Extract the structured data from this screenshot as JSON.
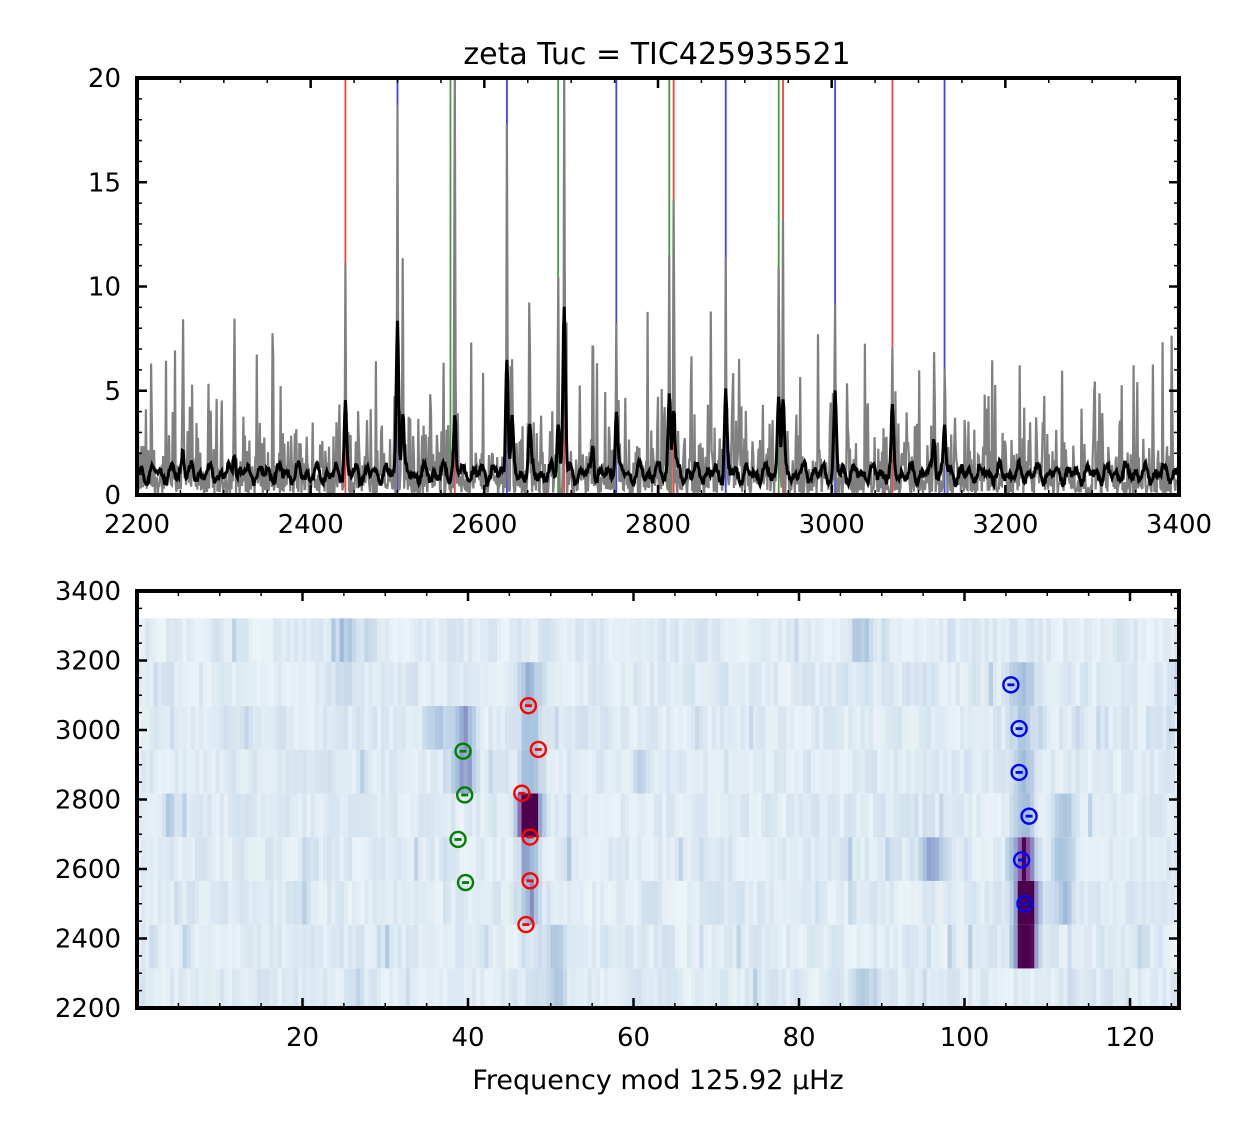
{
  "chart_data": [
    {
      "type": "line",
      "title": "zeta Tuc = TIC425935521",
      "xlabel": "",
      "ylabel": "",
      "xlim": [
        2200,
        3400
      ],
      "ylim": [
        0,
        20
      ],
      "xticks": [
        2200,
        2400,
        2600,
        2800,
        3000,
        3200,
        3400
      ],
      "yticks": [
        0,
        5,
        10,
        15,
        20
      ],
      "grid": false,
      "colors": {
        "raw": "#808080",
        "smooth": "#000000",
        "l0": "#ff0000",
        "l1": "#0000ff",
        "l2": "#008000"
      },
      "mode_lines": {
        "l0": [
          2440,
          2566,
          2692,
          2818,
          2944,
          3070
        ],
        "l1": [
          2500,
          2626,
          2752,
          2878,
          3004,
          3130
        ],
        "l2": [
          2561,
          2685,
          2813,
          2939
        ]
      },
      "peaks": [
        {
          "x": 2253,
          "raw": 7.5,
          "smooth": 1.5
        },
        {
          "x": 2312,
          "raw": 6.8,
          "smooth": 1.6
        },
        {
          "x": 2440,
          "raw": 9.2,
          "smooth": 3.8
        },
        {
          "x": 2500,
          "raw": 19,
          "smooth": 8.2
        },
        {
          "x": 2506,
          "raw": 10.9,
          "smooth": 3.0
        },
        {
          "x": 2566,
          "raw": 20,
          "smooth": 3.0
        },
        {
          "x": 2626,
          "raw": 14.6,
          "smooth": 6.5
        },
        {
          "x": 2632,
          "raw": 6.2,
          "smooth": 2.5
        },
        {
          "x": 2652,
          "raw": 10,
          "smooth": 2.5
        },
        {
          "x": 2685,
          "raw": 10.5,
          "smooth": 3.0
        },
        {
          "x": 2692,
          "raw": 20,
          "smooth": 9.0
        },
        {
          "x": 2725,
          "raw": 6.4,
          "smooth": 1.5
        },
        {
          "x": 2752,
          "raw": 7.3,
          "smooth": 3.6
        },
        {
          "x": 2813,
          "raw": 12,
          "smooth": 4.2
        },
        {
          "x": 2818,
          "raw": 13.3,
          "smooth": 3.5
        },
        {
          "x": 2878,
          "raw": 9.1,
          "smooth": 4.1
        },
        {
          "x": 2939,
          "raw": 10.3,
          "smooth": 4.5
        },
        {
          "x": 2944,
          "raw": 11.3,
          "smooth": 3.5
        },
        {
          "x": 3004,
          "raw": 9.0,
          "smooth": 4.1
        },
        {
          "x": 3070,
          "raw": 6.9,
          "smooth": 3.0
        },
        {
          "x": 3130,
          "raw": 6.1,
          "smooth": 2.5
        },
        {
          "x": 3118,
          "raw": 5.6,
          "smooth": 2.0
        }
      ]
    },
    {
      "type": "heatmap",
      "title": "",
      "xlabel": "Frequency mod 125.92 μHz",
      "ylabel": "",
      "xlim": [
        0,
        125.92
      ],
      "ylim": [
        2200,
        3400
      ],
      "xticks": [
        20,
        40,
        60,
        80,
        100,
        120
      ],
      "yticks": [
        2200,
        2400,
        2600,
        2800,
        3000,
        3200,
        3400
      ],
      "grid": false,
      "colormap": "BuPu",
      "row_count": 9,
      "row_start": 2188,
      "row_height": 125.92,
      "ridges": [
        {
          "x": 39.5,
          "rows": [
            5,
            6
          ],
          "strength": 0.45
        },
        {
          "x": 47.5,
          "rows": [
            2,
            3,
            4,
            5,
            6,
            7
          ],
          "strength": 0.35
        },
        {
          "x": 47.3,
          "rows": [
            4
          ],
          "strength": 1.0
        },
        {
          "x": 107.2,
          "rows": [
            1,
            2,
            3,
            4,
            5,
            6,
            7
          ],
          "strength": 0.3
        },
        {
          "x": 107.5,
          "rows": [
            1,
            2
          ],
          "strength": 0.95
        },
        {
          "x": 107.2,
          "rows": [
            3
          ],
          "strength": 0.5
        },
        {
          "x": 112,
          "rows": [
            2,
            3,
            4
          ],
          "strength": 0.3
        },
        {
          "x": 96,
          "rows": [
            3
          ],
          "strength": 0.4
        },
        {
          "x": 50.5,
          "rows": [
            0,
            1
          ],
          "strength": 0.25
        },
        {
          "x": 88,
          "rows": [
            0,
            8
          ],
          "strength": 0.2
        },
        {
          "x": 36,
          "rows": [
            6
          ],
          "strength": 0.2
        },
        {
          "x": 25,
          "rows": [
            7,
            8
          ],
          "strength": 0.15
        },
        {
          "x": 61,
          "rows": [
            5
          ],
          "strength": 0.15
        }
      ],
      "modes": {
        "l0": {
          "color": "#ff0000",
          "points": [
            [
              47,
              2440
            ],
            [
              47.5,
              2566
            ],
            [
              47.5,
              2692
            ],
            [
              46.5,
              2818
            ],
            [
              48.5,
              2944
            ],
            [
              47.3,
              3070
            ]
          ]
        },
        "l1": {
          "color": "#0000ff",
          "points": [
            [
              107.3,
              2500
            ],
            [
              106.9,
              2626
            ],
            [
              107.8,
              2752
            ],
            [
              106.6,
              2878
            ],
            [
              106.6,
              3004
            ],
            [
              105.6,
              3130
            ]
          ]
        },
        "l2": {
          "color": "#008000",
          "points": [
            [
              39.7,
              2561
            ],
            [
              38.8,
              2685
            ],
            [
              39.6,
              2813
            ],
            [
              39.4,
              2939
            ]
          ]
        }
      }
    }
  ]
}
